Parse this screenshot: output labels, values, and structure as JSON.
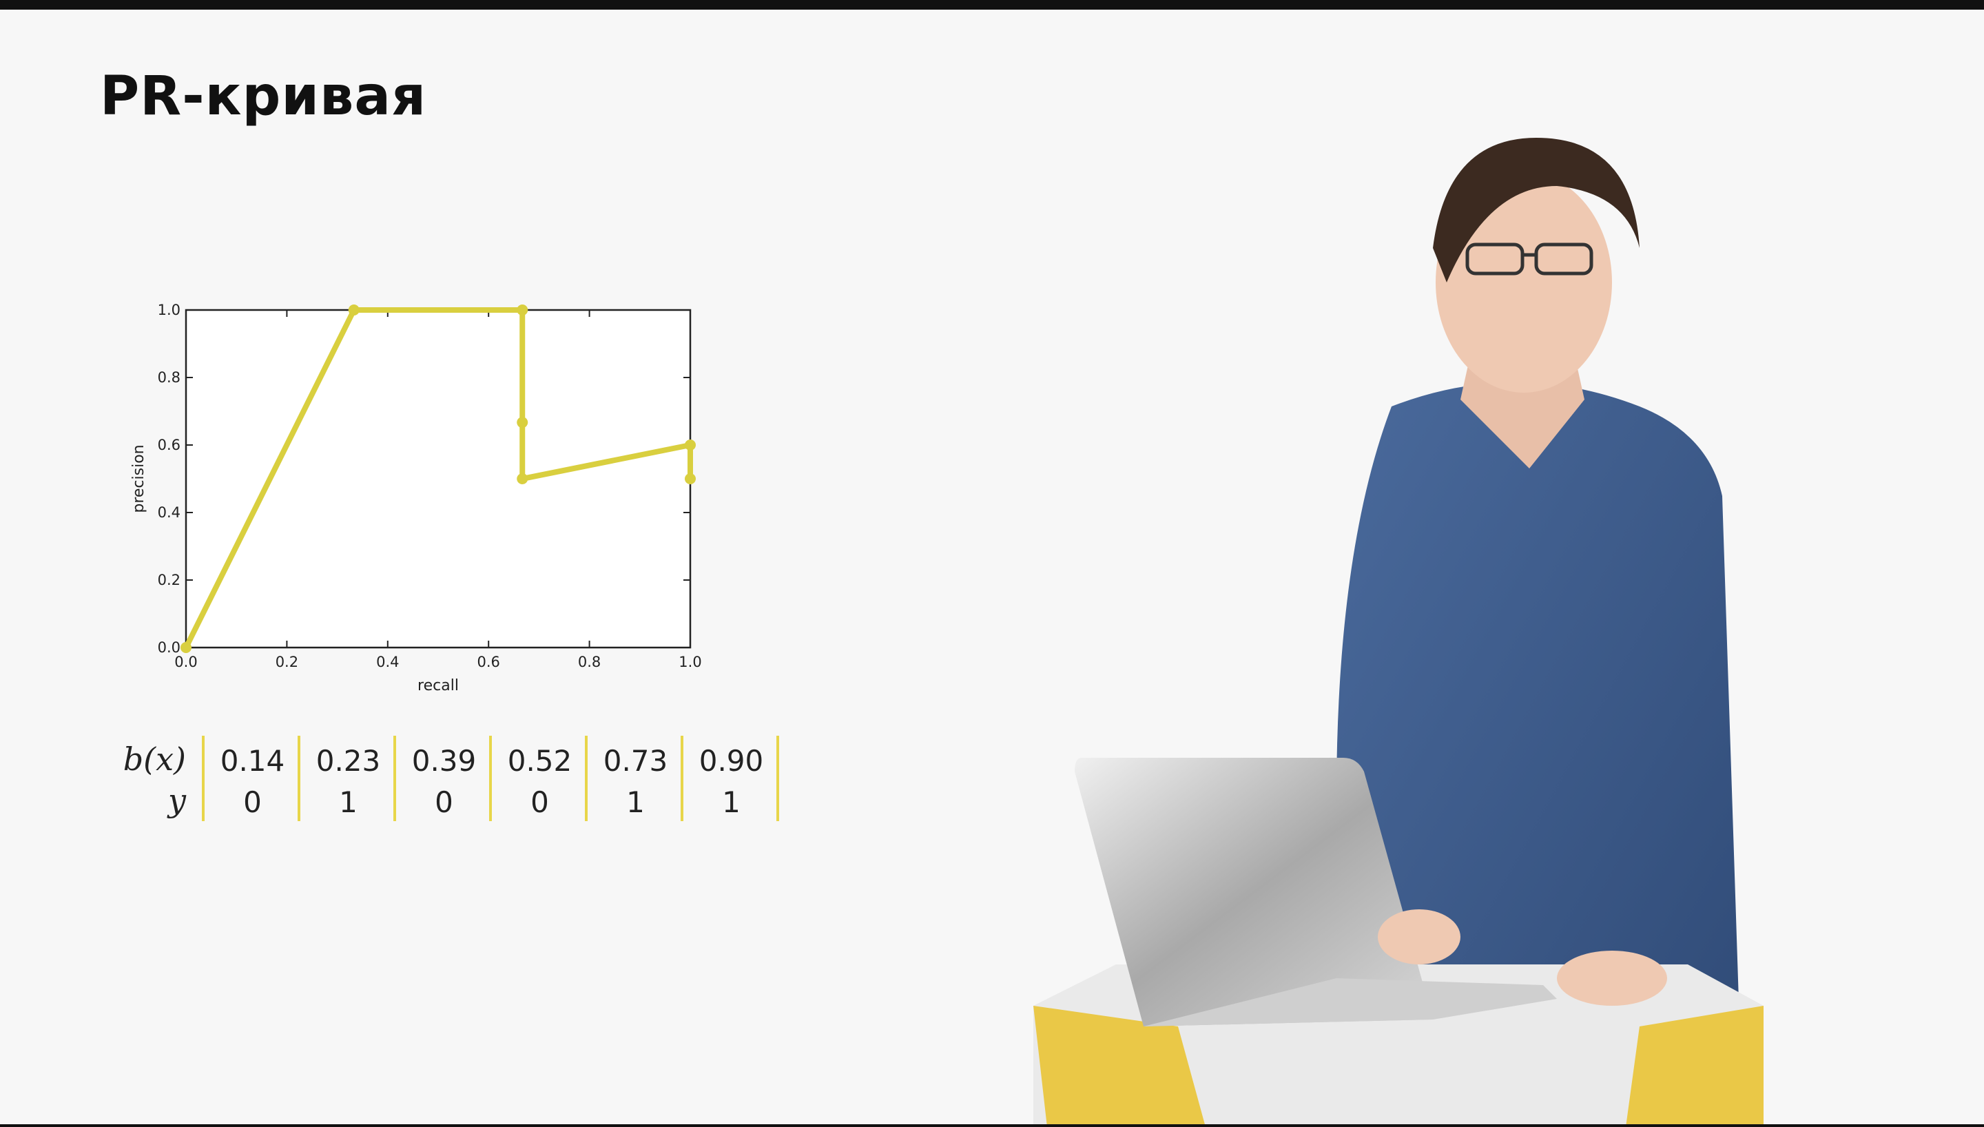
{
  "slide": {
    "title": "PR-кривая"
  },
  "chart_data": {
    "type": "line",
    "x": [
      0.0,
      0.333,
      0.667,
      0.667,
      0.667,
      1.0,
      1.0
    ],
    "y": [
      0.0,
      1.0,
      1.0,
      0.667,
      0.5,
      0.6,
      0.5
    ],
    "series": [
      {
        "values": [
          0.0,
          1.0,
          1.0,
          0.667,
          0.5,
          0.6,
          0.5
        ],
        "color": "#d9cf3f"
      }
    ],
    "xlabel": "recall",
    "ylabel": "precision",
    "xlim": [
      0.0,
      1.0
    ],
    "ylim": [
      0.0,
      1.0
    ],
    "xticks": [
      "0.0",
      "0.2",
      "0.4",
      "0.6",
      "0.8",
      "1.0"
    ],
    "yticks": [
      "0.0",
      "0.2",
      "0.4",
      "0.6",
      "0.8",
      "1.0"
    ],
    "grid": false
  },
  "table": {
    "row_labels": [
      "b(x)",
      "y"
    ],
    "bx": [
      "0.14",
      "0.23",
      "0.39",
      "0.52",
      "0.73",
      "0.90"
    ],
    "y": [
      "0",
      "1",
      "0",
      "0",
      "1",
      "1"
    ]
  },
  "colors": {
    "accent": "#d9cf3f",
    "background": "#f7f7f7"
  }
}
